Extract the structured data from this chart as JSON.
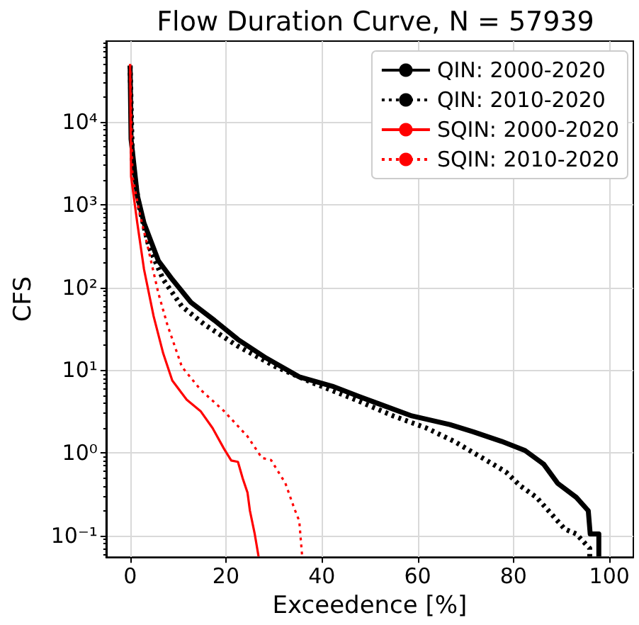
{
  "chart_data": {
    "type": "line",
    "title": "Flow Duration Curve, N = 57939",
    "xlabel": "Exceedence [%]",
    "ylabel": "CFS",
    "log": "y",
    "grid": true,
    "legend": "top right",
    "xlim": [
      -5,
      105
    ],
    "xticks": [
      0,
      20,
      40,
      60,
      80,
      100
    ],
    "ylim": [
      0.055,
      95000
    ],
    "yticks": [
      {
        "value": 0.1,
        "label": "10⁻¹"
      },
      {
        "value": 1,
        "label": "10⁰"
      },
      {
        "value": 10,
        "label": "10¹"
      },
      {
        "value": 100,
        "label": "10²"
      },
      {
        "value": 1000,
        "label": "10³"
      },
      {
        "value": 10000,
        "label": "10⁴"
      }
    ],
    "series": [
      {
        "name": "QIN: 2000-2020",
        "color": "#000000",
        "line_style": "solid",
        "x": [
          0,
          0.2,
          1.5,
          2.9,
          5.9,
          8.8,
          12.7,
          17.6,
          22.5,
          28.4,
          35.3,
          42.2,
          47,
          52,
          58.8,
          66.7,
          71.6,
          77.5,
          82.4,
          86.3,
          89.2,
          93.1,
          95.6,
          96,
          97.8,
          97.8
        ],
        "values": [
          48000,
          6200,
          1300,
          600,
          210,
          125,
          66,
          40,
          23.5,
          14,
          8.3,
          6.4,
          5,
          3.9,
          2.8,
          2.2,
          1.8,
          1.38,
          1.07,
          0.73,
          0.43,
          0.29,
          0.2,
          0.105,
          0.105,
          0.056
        ]
      },
      {
        "name": "QIN: 2010-2020",
        "color": "#000000",
        "line_style": "dotted",
        "x": [
          0,
          0.5,
          2,
          3.9,
          6.9,
          10.8,
          15.7,
          22.5,
          30.4,
          38.2,
          47,
          54.9,
          61.8,
          67.6,
          73.5,
          78.4,
          81.4,
          84.8,
          87.3,
          90.7,
          93.1,
          95.9,
          95.9
        ],
        "values": [
          48000,
          3200,
          890,
          315,
          125,
          59,
          35,
          19.5,
          11,
          7,
          4.4,
          2.8,
          2,
          1.38,
          0.87,
          0.59,
          0.4,
          0.29,
          0.2,
          0.12,
          0.105,
          0.07,
          0.056
        ]
      },
      {
        "name": "SQIN: 2000-2020",
        "color": "#ff0000",
        "line_style": "solid",
        "x": [
          0,
          0.2,
          1.5,
          2.9,
          4.9,
          6.9,
          8.8,
          11.8,
          14.7,
          17.2,
          19.6,
          21.1,
          22.5,
          23.5,
          24.5,
          25,
          26,
          26.8
        ],
        "values": [
          50000,
          2200,
          600,
          166,
          45,
          16,
          7.5,
          4.4,
          3.2,
          2,
          1.12,
          0.81,
          0.78,
          0.49,
          0.33,
          0.2,
          0.105,
          0.056
        ]
      },
      {
        "name": "SQIN: 2010-2020",
        "color": "#ff0000",
        "line_style": "dotted",
        "x": [
          0,
          0.5,
          2,
          3.9,
          5.9,
          7.8,
          10.8,
          14.7,
          19.6,
          24.5,
          27.5,
          29.4,
          32.4,
          34.3,
          35.3,
          35.9
        ],
        "values": [
          50000,
          2200,
          780,
          275,
          85,
          35,
          11,
          5.8,
          3.2,
          1.58,
          0.87,
          0.82,
          0.43,
          0.21,
          0.15,
          0.056
        ]
      }
    ]
  }
}
